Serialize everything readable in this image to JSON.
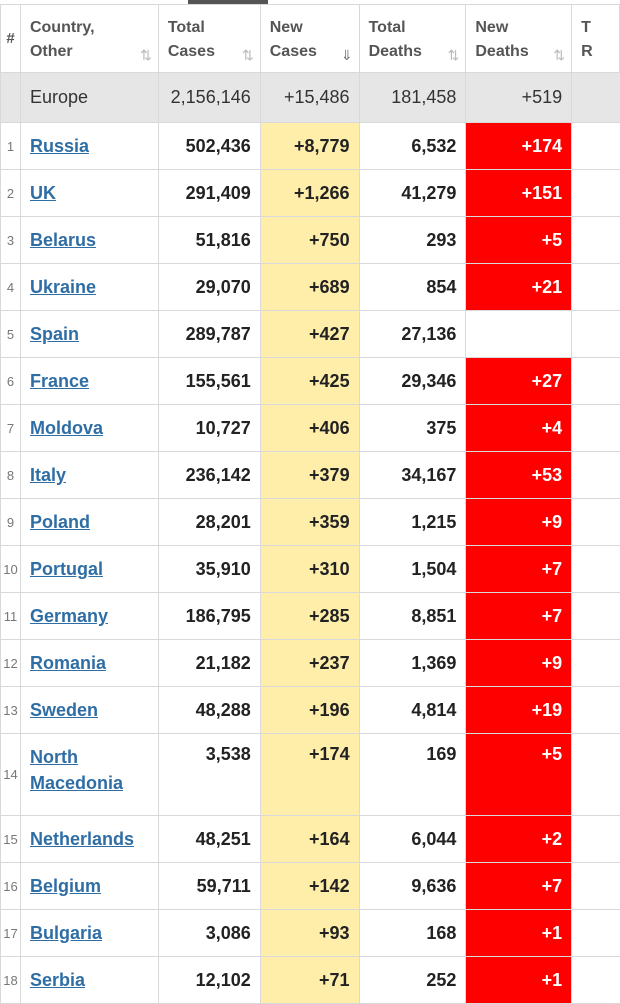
{
  "header": {
    "index": "#",
    "country": [
      "Country,",
      "Other"
    ],
    "total_cases": [
      "Total",
      "Cases"
    ],
    "new_cases": [
      "New",
      "Cases"
    ],
    "total_deaths": [
      "Total",
      "Deaths"
    ],
    "new_deaths": [
      "New",
      "Deaths"
    ],
    "cut_col": [
      "T",
      "R"
    ],
    "sort_icon": "⇅",
    "active_sort_icon": "⇓"
  },
  "region": {
    "name": "Europe",
    "total_cases": "2,156,146",
    "new_cases": "+15,486",
    "total_deaths": "181,458",
    "new_deaths": "+519"
  },
  "rows": [
    {
      "idx": "1",
      "country": "Russia",
      "total_cases": "502,436",
      "new_cases": "+8,779",
      "total_deaths": "6,532",
      "new_deaths": "+174"
    },
    {
      "idx": "2",
      "country": "UK",
      "total_cases": "291,409",
      "new_cases": "+1,266",
      "total_deaths": "41,279",
      "new_deaths": "+151"
    },
    {
      "idx": "3",
      "country": "Belarus",
      "total_cases": "51,816",
      "new_cases": "+750",
      "total_deaths": "293",
      "new_deaths": "+5"
    },
    {
      "idx": "4",
      "country": "Ukraine",
      "total_cases": "29,070",
      "new_cases": "+689",
      "total_deaths": "854",
      "new_deaths": "+21"
    },
    {
      "idx": "5",
      "country": "Spain",
      "total_cases": "289,787",
      "new_cases": "+427",
      "total_deaths": "27,136",
      "new_deaths": ""
    },
    {
      "idx": "6",
      "country": "France",
      "total_cases": "155,561",
      "new_cases": "+425",
      "total_deaths": "29,346",
      "new_deaths": "+27"
    },
    {
      "idx": "7",
      "country": "Moldova",
      "total_cases": "10,727",
      "new_cases": "+406",
      "total_deaths": "375",
      "new_deaths": "+4"
    },
    {
      "idx": "8",
      "country": "Italy",
      "total_cases": "236,142",
      "new_cases": "+379",
      "total_deaths": "34,167",
      "new_deaths": "+53"
    },
    {
      "idx": "9",
      "country": "Poland",
      "total_cases": "28,201",
      "new_cases": "+359",
      "total_deaths": "1,215",
      "new_deaths": "+9"
    },
    {
      "idx": "10",
      "country": "Portugal",
      "total_cases": "35,910",
      "new_cases": "+310",
      "total_deaths": "1,504",
      "new_deaths": "+7"
    },
    {
      "idx": "11",
      "country": "Germany",
      "total_cases": "186,795",
      "new_cases": "+285",
      "total_deaths": "8,851",
      "new_deaths": "+7"
    },
    {
      "idx": "12",
      "country": "Romania",
      "total_cases": "21,182",
      "new_cases": "+237",
      "total_deaths": "1,369",
      "new_deaths": "+9"
    },
    {
      "idx": "13",
      "country": "Sweden",
      "total_cases": "48,288",
      "new_cases": "+196",
      "total_deaths": "4,814",
      "new_deaths": "+19"
    },
    {
      "idx": "14",
      "country": "North Macedonia",
      "total_cases": "3,538",
      "new_cases": "+174",
      "total_deaths": "169",
      "new_deaths": "+5"
    },
    {
      "idx": "15",
      "country": "Netherlands",
      "total_cases": "48,251",
      "new_cases": "+164",
      "total_deaths": "6,044",
      "new_deaths": "+2"
    },
    {
      "idx": "16",
      "country": "Belgium",
      "total_cases": "59,711",
      "new_cases": "+142",
      "total_deaths": "9,636",
      "new_deaths": "+7"
    },
    {
      "idx": "17",
      "country": "Bulgaria",
      "total_cases": "3,086",
      "new_cases": "+93",
      "total_deaths": "168",
      "new_deaths": "+1"
    },
    {
      "idx": "18",
      "country": "Serbia",
      "total_cases": "12,102",
      "new_cases": "+71",
      "total_deaths": "252",
      "new_deaths": "+1"
    }
  ],
  "colors": {
    "new_cases_bg": "#ffeeaa",
    "new_deaths_bg": "#ff0000",
    "link": "#2f6ea5",
    "region_bg": "#e6e6e6"
  }
}
